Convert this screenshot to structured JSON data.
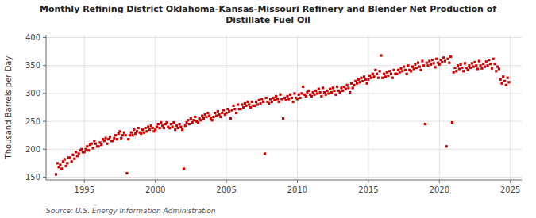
{
  "chart_data": {
    "type": "scatter",
    "title": "Monthly Refining District Oklahoma-Kansas-Missouri Refinery and Blender Net Production of\nDistillate Fuel Oil",
    "ylabel": "Thousand Barrels per Day",
    "annotations": [
      "Source: U.S. Energy Information Administration"
    ],
    "color": "#cc0000",
    "marker": "square",
    "grid": true,
    "xlim": [
      1992.3,
      2025.8
    ],
    "ylim": [
      145,
      405
    ],
    "xticks": [
      1995,
      2000,
      2005,
      2010,
      2015,
      2020,
      2025
    ],
    "yticks": [
      150,
      200,
      250,
      300,
      350,
      400
    ],
    "x": [
      1993.0,
      1993.1,
      1993.2,
      1993.3,
      1993.4,
      1993.5,
      1993.6,
      1993.7,
      1993.8,
      1993.9,
      1994.0,
      1994.1,
      1994.2,
      1994.3,
      1994.4,
      1994.5,
      1994.6,
      1994.7,
      1994.8,
      1994.9,
      1995.0,
      1995.1,
      1995.2,
      1995.3,
      1995.4,
      1995.5,
      1995.6,
      1995.7,
      1995.8,
      1995.9,
      1996.0,
      1996.1,
      1996.2,
      1996.3,
      1996.4,
      1996.5,
      1996.6,
      1996.7,
      1996.8,
      1996.9,
      1997.0,
      1997.1,
      1997.2,
      1997.3,
      1997.4,
      1997.5,
      1997.6,
      1997.7,
      1997.8,
      1997.9,
      1998.0,
      1998.1,
      1998.2,
      1998.3,
      1998.4,
      1998.5,
      1998.6,
      1998.7,
      1998.8,
      1998.9,
      1999.0,
      1999.1,
      1999.2,
      1999.3,
      1999.4,
      1999.5,
      1999.6,
      1999.7,
      1999.8,
      1999.9,
      2000.0,
      2000.1,
      2000.2,
      2000.3,
      2000.4,
      2000.5,
      2000.6,
      2000.7,
      2000.8,
      2000.9,
      2001.0,
      2001.1,
      2001.2,
      2001.3,
      2001.4,
      2001.5,
      2001.6,
      2001.7,
      2001.8,
      2001.9,
      2002.0,
      2002.1,
      2002.2,
      2002.3,
      2002.4,
      2002.5,
      2002.6,
      2002.7,
      2002.8,
      2002.9,
      2003.0,
      2003.1,
      2003.2,
      2003.3,
      2003.4,
      2003.5,
      2003.6,
      2003.7,
      2003.8,
      2003.9,
      2004.0,
      2004.1,
      2004.2,
      2004.3,
      2004.4,
      2004.5,
      2004.6,
      2004.7,
      2004.8,
      2004.9,
      2005.0,
      2005.1,
      2005.2,
      2005.3,
      2005.4,
      2005.5,
      2005.6,
      2005.7,
      2005.8,
      2005.9,
      2006.0,
      2006.1,
      2006.2,
      2006.3,
      2006.4,
      2006.5,
      2006.6,
      2006.7,
      2006.8,
      2006.9,
      2007.0,
      2007.1,
      2007.2,
      2007.3,
      2007.4,
      2007.5,
      2007.6,
      2007.7,
      2007.8,
      2007.9,
      2008.0,
      2008.1,
      2008.2,
      2008.3,
      2008.4,
      2008.5,
      2008.6,
      2008.7,
      2008.8,
      2008.9,
      2009.0,
      2009.1,
      2009.2,
      2009.3,
      2009.4,
      2009.5,
      2009.6,
      2009.7,
      2009.8,
      2009.9,
      2010.0,
      2010.1,
      2010.2,
      2010.3,
      2010.4,
      2010.5,
      2010.6,
      2010.7,
      2010.8,
      2010.9,
      2011.0,
      2011.1,
      2011.2,
      2011.3,
      2011.4,
      2011.5,
      2011.6,
      2011.7,
      2011.8,
      2011.9,
      2012.0,
      2012.1,
      2012.2,
      2012.3,
      2012.4,
      2012.5,
      2012.6,
      2012.7,
      2012.8,
      2012.9,
      2013.0,
      2013.1,
      2013.2,
      2013.3,
      2013.4,
      2013.5,
      2013.6,
      2013.7,
      2013.8,
      2013.9,
      2014.0,
      2014.1,
      2014.2,
      2014.3,
      2014.4,
      2014.5,
      2014.6,
      2014.7,
      2014.8,
      2014.9,
      2015.0,
      2015.1,
      2015.2,
      2015.3,
      2015.4,
      2015.5,
      2015.6,
      2015.7,
      2015.8,
      2015.9,
      2016.0,
      2016.1,
      2016.2,
      2016.3,
      2016.4,
      2016.5,
      2016.6,
      2016.7,
      2016.8,
      2016.9,
      2017.0,
      2017.1,
      2017.2,
      2017.3,
      2017.4,
      2017.5,
      2017.6,
      2017.7,
      2017.8,
      2017.9,
      2018.0,
      2018.1,
      2018.2,
      2018.3,
      2018.4,
      2018.5,
      2018.6,
      2018.7,
      2018.8,
      2018.9,
      2019.0,
      2019.1,
      2019.2,
      2019.3,
      2019.4,
      2019.5,
      2019.6,
      2019.7,
      2019.8,
      2019.9,
      2020.0,
      2020.1,
      2020.2,
      2020.3,
      2020.4,
      2020.5,
      2020.6,
      2020.7,
      2020.8,
      2020.9,
      2021.0,
      2021.1,
      2021.2,
      2021.3,
      2021.4,
      2021.5,
      2021.6,
      2021.7,
      2021.8,
      2021.9,
      2022.0,
      2022.1,
      2022.2,
      2022.3,
      2022.4,
      2022.5,
      2022.6,
      2022.7,
      2022.8,
      2022.9,
      2023.0,
      2023.1,
      2023.2,
      2023.3,
      2023.4,
      2023.5,
      2023.6,
      2023.7,
      2023.8,
      2023.9,
      2024.0,
      2024.1,
      2024.2,
      2024.3,
      2024.4,
      2024.5,
      2024.6,
      2024.7,
      2024.8,
      2024.9
    ],
    "values": [
      155,
      175,
      168,
      172,
      165,
      178,
      182,
      170,
      175,
      185,
      185,
      178,
      190,
      183,
      195,
      188,
      192,
      198,
      200,
      195,
      195,
      200,
      205,
      198,
      208,
      210,
      202,
      215,
      210,
      205,
      205,
      212,
      208,
      218,
      215,
      220,
      210,
      218,
      222,
      215,
      215,
      220,
      225,
      218,
      228,
      232,
      220,
      225,
      230,
      225,
      157,
      218,
      225,
      230,
      225,
      235,
      228,
      232,
      238,
      230,
      228,
      235,
      230,
      238,
      232,
      240,
      235,
      242,
      238,
      232,
      235,
      240,
      245,
      238,
      248,
      242,
      238,
      245,
      248,
      240,
      238,
      245,
      240,
      248,
      235,
      242,
      238,
      245,
      240,
      235,
      165,
      242,
      248,
      252,
      245,
      255,
      248,
      252,
      258,
      250,
      248,
      255,
      252,
      260,
      255,
      262,
      258,
      265,
      260,
      255,
      252,
      258,
      265,
      260,
      268,
      262,
      258,
      265,
      270,
      262,
      265,
      272,
      268,
      255,
      270,
      278,
      272,
      265,
      280,
      272,
      272,
      280,
      275,
      282,
      278,
      285,
      280,
      275,
      285,
      278,
      278,
      285,
      280,
      288,
      282,
      290,
      285,
      192,
      292,
      285,
      282,
      290,
      285,
      292,
      288,
      295,
      290,
      285,
      298,
      290,
      255,
      292,
      288,
      295,
      290,
      298,
      292,
      285,
      300,
      292,
      290,
      298,
      292,
      300,
      312,
      298,
      295,
      302,
      305,
      298,
      295,
      302,
      298,
      305,
      300,
      308,
      302,
      295,
      310,
      302,
      298,
      305,
      300,
      308,
      302,
      310,
      305,
      298,
      312,
      305,
      302,
      310,
      305,
      312,
      308,
      315,
      310,
      302,
      318,
      310,
      315,
      322,
      318,
      325,
      320,
      328,
      322,
      330,
      325,
      318,
      325,
      332,
      328,
      335,
      330,
      342,
      335,
      328,
      340,
      368,
      328,
      335,
      330,
      338,
      332,
      340,
      335,
      328,
      342,
      335,
      335,
      342,
      338,
      345,
      340,
      348,
      342,
      335,
      350,
      342,
      340,
      348,
      344,
      352,
      346,
      355,
      348,
      342,
      358,
      350,
      245,
      355,
      350,
      358,
      352,
      360,
      354,
      347,
      362,
      355,
      352,
      360,
      356,
      364,
      358,
      205,
      362,
      355,
      366,
      248,
      338,
      346,
      340,
      350,
      344,
      352,
      346,
      340,
      354,
      346,
      342,
      350,
      346,
      354,
      348,
      356,
      350,
      344,
      358,
      350,
      345,
      353,
      348,
      357,
      350,
      360,
      353,
      345,
      362,
      353,
      340,
      348,
      344,
      325,
      318,
      330,
      322,
      315,
      328,
      320
    ]
  }
}
